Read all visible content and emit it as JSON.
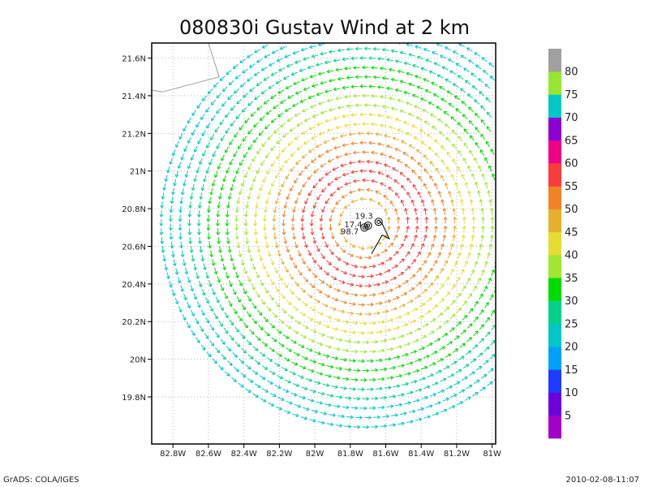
{
  "chart_data": {
    "type": "vector-field",
    "title": "080830i Gustav Wind at 2 km",
    "xlabel": "",
    "ylabel": "",
    "xlim": [
      -82.92,
      -80.98
    ],
    "ylim": [
      19.55,
      21.68
    ],
    "x_ticks": [
      {
        "value": -82.8,
        "label": "82.8W"
      },
      {
        "value": -82.6,
        "label": "82.6W"
      },
      {
        "value": -82.4,
        "label": "82.4W"
      },
      {
        "value": -82.2,
        "label": "82.2W"
      },
      {
        "value": -82.0,
        "label": "82W"
      },
      {
        "value": -81.8,
        "label": "81.8W"
      },
      {
        "value": -81.6,
        "label": "81.6W"
      },
      {
        "value": -81.4,
        "label": "81.4W"
      },
      {
        "value": -81.2,
        "label": "81.2W"
      },
      {
        "value": -81.0,
        "label": "81W"
      }
    ],
    "y_ticks": [
      {
        "value": 19.8,
        "label": "19.8N"
      },
      {
        "value": 20.0,
        "label": "20N"
      },
      {
        "value": 20.2,
        "label": "20.2N"
      },
      {
        "value": 20.4,
        "label": "20.4N"
      },
      {
        "value": 20.6,
        "label": "20.6N"
      },
      {
        "value": 20.8,
        "label": "20.8N"
      },
      {
        "value": 21.0,
        "label": "21N"
      },
      {
        "value": 21.2,
        "label": "21.2N"
      },
      {
        "value": 21.4,
        "label": "21.4N"
      },
      {
        "value": 21.6,
        "label": "21.6N"
      }
    ],
    "grid": true,
    "storm_center": {
      "lon": -81.72,
      "lat": 20.72
    },
    "rings": [
      {
        "radius_deg": 0.13,
        "speed": 45
      },
      {
        "radius_deg": 0.18,
        "speed": 52
      },
      {
        "radius_deg": 0.23,
        "speed": 57
      },
      {
        "radius_deg": 0.28,
        "speed": 58
      },
      {
        "radius_deg": 0.33,
        "speed": 56
      },
      {
        "radius_deg": 0.38,
        "speed": 53
      },
      {
        "radius_deg": 0.43,
        "speed": 50
      },
      {
        "radius_deg": 0.48,
        "speed": 47
      },
      {
        "radius_deg": 0.53,
        "speed": 44
      },
      {
        "radius_deg": 0.58,
        "speed": 41
      },
      {
        "radius_deg": 0.63,
        "speed": 38
      },
      {
        "radius_deg": 0.68,
        "speed": 36
      },
      {
        "radius_deg": 0.73,
        "speed": 34
      },
      {
        "radius_deg": 0.78,
        "speed": 32
      },
      {
        "radius_deg": 0.83,
        "speed": 30
      },
      {
        "radius_deg": 0.88,
        "speed": 28
      },
      {
        "radius_deg": 0.93,
        "speed": 26
      },
      {
        "radius_deg": 0.98,
        "speed": 24
      },
      {
        "radius_deg": 1.03,
        "speed": 23
      },
      {
        "radius_deg": 1.08,
        "speed": 22
      }
    ],
    "track": [
      {
        "lon": -81.68,
        "lat": 20.56
      },
      {
        "lon": -81.62,
        "lat": 20.66
      },
      {
        "lon": -81.58,
        "lat": 20.64
      },
      {
        "lon": -81.62,
        "lat": 20.72
      },
      {
        "lon": -81.64,
        "lat": 20.74
      }
    ],
    "markers": [
      {
        "lon": -81.64,
        "lat": 20.73,
        "label": "19.3"
      },
      {
        "lon": -81.7,
        "lat": 20.71,
        "label": "17.4"
      },
      {
        "lon": -81.72,
        "lat": 20.7,
        "label": "98.7"
      }
    ],
    "coastline": [
      {
        "lon": -82.92,
        "lat": 21.43
      },
      {
        "lon": -82.86,
        "lat": 21.42
      },
      {
        "lon": -82.54,
        "lat": 21.5
      },
      {
        "lon": -82.6,
        "lat": 21.68
      }
    ],
    "colorbar": {
      "labels": [
        "5",
        "10",
        "15",
        "20",
        "25",
        "30",
        "35",
        "40",
        "45",
        "50",
        "55",
        "60",
        "65",
        "70",
        "75",
        "80"
      ],
      "colors": [
        "#a000c8",
        "#6e00dc",
        "#1e3cff",
        "#00a0ff",
        "#00c8c8",
        "#00d28c",
        "#00dc00",
        "#a0e632",
        "#e6dc32",
        "#e6af2d",
        "#f08228",
        "#fa3c3c",
        "#f00082",
        "#8c00d2",
        "#00c8c8",
        "#96e632",
        "#a0a0a0"
      ]
    }
  },
  "footer": {
    "left": "GrADS: COLA/IGES",
    "right": "2010-02-08-11:07"
  }
}
